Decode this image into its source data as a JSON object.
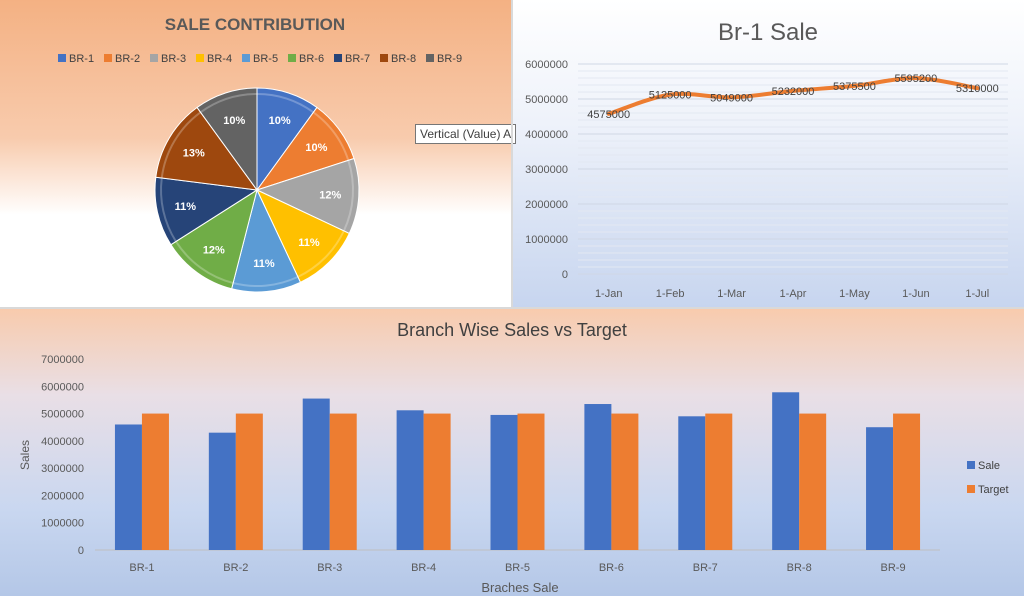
{
  "chart_data": [
    {
      "type": "pie",
      "title": "SALE CONTRIBUTION",
      "categories": [
        "BR-1",
        "BR-2",
        "BR-3",
        "BR-4",
        "BR-5",
        "BR-6",
        "BR-7",
        "BR-8",
        "BR-9"
      ],
      "values": [
        10,
        10,
        12,
        11,
        11,
        12,
        11,
        13,
        10
      ],
      "data_labels": [
        "10%",
        "10%",
        "12%",
        "11%",
        "11%",
        "12%",
        "11%",
        "13%",
        "10%"
      ],
      "colors": [
        "#4472c4",
        "#ed7d31",
        "#a5a5a5",
        "#ffc000",
        "#5b9bd5",
        "#70ad47",
        "#264478",
        "#9e480e",
        "#636363"
      ],
      "legend_position": "top"
    },
    {
      "type": "line",
      "title": "Br-1 Sale",
      "categories": [
        "1-Jan",
        "1-Feb",
        "1-Mar",
        "1-Apr",
        "1-May",
        "1-Jun",
        "1-Jul"
      ],
      "values": [
        4575000,
        5125000,
        5049000,
        5232000,
        5375500,
        5595200,
        5310000
      ],
      "data_labels": [
        "4575000",
        "5125000",
        "5049000",
        "5232000",
        "5375500",
        "5595200",
        "5310000"
      ],
      "y_ticks": [
        "0",
        "1000000",
        "2000000",
        "3000000",
        "4000000",
        "5000000",
        "6000000"
      ],
      "ylim": [
        0,
        6000000
      ],
      "color": "#ed7d31",
      "grid": true,
      "tooltip": "Vertical (Value) A"
    },
    {
      "type": "bar",
      "title": "Branch Wise Sales vs Target",
      "xlabel": "Braches Sale",
      "ylabel": "Sales",
      "categories": [
        "BR-1",
        "BR-2",
        "BR-3",
        "BR-4",
        "BR-5",
        "BR-6",
        "BR-7",
        "BR-8",
        "BR-9"
      ],
      "series": [
        {
          "name": "Sale",
          "values": [
            4600000,
            4300000,
            5550000,
            5120000,
            4950000,
            5350000,
            4900000,
            5780000,
            4500000
          ],
          "color": "#4472c4"
        },
        {
          "name": "Target",
          "values": [
            5000000,
            5000000,
            5000000,
            5000000,
            5000000,
            5000000,
            5000000,
            5000000,
            5000000
          ],
          "color": "#ed7d31"
        }
      ],
      "y_ticks": [
        "0",
        "1000000",
        "2000000",
        "3000000",
        "4000000",
        "5000000",
        "6000000",
        "7000000"
      ],
      "ylim": [
        0,
        7000000
      ],
      "legend_position": "right"
    }
  ]
}
